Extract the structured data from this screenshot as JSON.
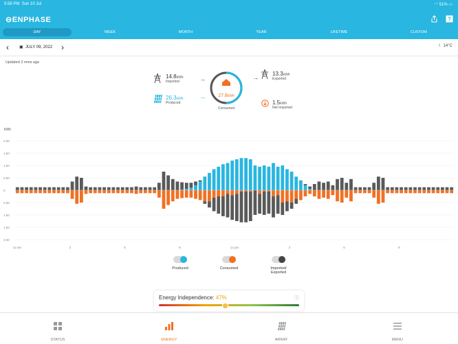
{
  "status_bar": {
    "time": "5:58 PM",
    "date": "Sun 10 Jul",
    "battery": "51%"
  },
  "app": {
    "name": "ENPHASE"
  },
  "tabs": [
    {
      "label": "DAY",
      "active": true
    },
    {
      "label": "WEEK",
      "active": false
    },
    {
      "label": "MONTH",
      "active": false
    },
    {
      "label": "YEAR",
      "active": false
    },
    {
      "label": "LIFETIME",
      "active": false
    },
    {
      "label": "CUSTOM",
      "active": false
    }
  ],
  "date_nav": {
    "date": "JULY 09, 2022",
    "temperature": "14°C"
  },
  "updated": "Updated 2 mins ago",
  "summary": {
    "imported": {
      "value": "14.8",
      "unit": "kWh",
      "label": "Imported"
    },
    "produced": {
      "value": "26.3",
      "unit": "kWh",
      "label": "Produced"
    },
    "consumed": {
      "value": "27.8",
      "unit": "kWh",
      "label": "Consumed"
    },
    "exported": {
      "value": "13.3",
      "unit": "kWh",
      "label": "Exported"
    },
    "net_imported": {
      "value": "1.5",
      "unit": "kWh",
      "label": "Net Imported"
    }
  },
  "colors": {
    "produced": "#29b6e0",
    "consumed": "#f27022",
    "imported": "#595959",
    "header": "#29b6e0"
  },
  "chart_data": {
    "type": "bar",
    "ylabel": "kWh",
    "ylim": [
      -2.0,
      2.0
    ],
    "y_ticks": [
      "2.00",
      "1.50",
      "1.00",
      "0.50",
      "0",
      "0.50",
      "1.00",
      "1.50",
      "2.00"
    ],
    "x_ticks": [
      "12 am",
      "3",
      "6",
      "9",
      "12 pm",
      "3",
      "6",
      "9"
    ],
    "intervals": 96,
    "series": [
      {
        "name": "Produced",
        "values": [
          0,
          0,
          0,
          0,
          0,
          0,
          0,
          0,
          0,
          0,
          0,
          0,
          0,
          0,
          0,
          0,
          0,
          0,
          0,
          0,
          0,
          0,
          0,
          0,
          0,
          0,
          0,
          0,
          0,
          0,
          0,
          0,
          0,
          0,
          0,
          0,
          0.02,
          0.05,
          0.1,
          0.2,
          0.35,
          0.55,
          0.7,
          0.85,
          0.95,
          1.05,
          1.1,
          1.2,
          1.25,
          1.3,
          1.3,
          1.25,
          1.0,
          0.95,
          1.0,
          0.95,
          1.1,
          0.95,
          1.0,
          0.85,
          0.75,
          0.55,
          0.4,
          0.2,
          0.05,
          0,
          0,
          0,
          0,
          0,
          0,
          0,
          0,
          0,
          0,
          0,
          0,
          0,
          0,
          0,
          0,
          0,
          0,
          0,
          0,
          0,
          0,
          0,
          0,
          0,
          0,
          0,
          0,
          0,
          0,
          0
        ]
      },
      {
        "name": "Imported/ Exported",
        "values": [
          0.12,
          0.12,
          0.12,
          0.12,
          0.12,
          0.12,
          0.12,
          0.12,
          0.12,
          0.12,
          0.12,
          0.12,
          0.35,
          0.55,
          0.5,
          0.15,
          0.12,
          0.12,
          0.12,
          0.12,
          0.12,
          0.12,
          0.12,
          0.12,
          0.12,
          0.12,
          0.15,
          0.12,
          0.12,
          0.12,
          0.12,
          0.3,
          0.75,
          0.6,
          0.45,
          0.35,
          0.3,
          0.25,
          0.2,
          0.15,
          0.05,
          -0.1,
          -0.25,
          -0.55,
          -0.7,
          -0.8,
          -0.95,
          -1.0,
          -1.1,
          -1.25,
          -1.25,
          -1.2,
          -1.0,
          -0.8,
          -0.95,
          -0.9,
          -0.85,
          -0.75,
          -0.5,
          -0.4,
          -0.25,
          -0.2,
          0.0,
          0.05,
          0.1,
          0.25,
          0.35,
          0.3,
          0.35,
          0.2,
          0.45,
          0.5,
          0.3,
          0.45,
          0.12,
          0.12,
          0.12,
          0.12,
          0.3,
          0.55,
          0.5,
          0.12,
          0.12,
          0.12,
          0.12,
          0.12,
          0.12,
          0.12,
          0.12,
          0.12,
          0.12,
          0.12,
          0.12,
          0.12,
          0.12,
          0.12
        ]
      },
      {
        "name": "Consumed",
        "values": [
          0.12,
          0.12,
          0.12,
          0.12,
          0.12,
          0.12,
          0.12,
          0.12,
          0.12,
          0.12,
          0.12,
          0.12,
          0.35,
          0.55,
          0.5,
          0.15,
          0.12,
          0.12,
          0.12,
          0.12,
          0.12,
          0.12,
          0.12,
          0.12,
          0.12,
          0.12,
          0.15,
          0.12,
          0.12,
          0.12,
          0.12,
          0.3,
          0.75,
          0.6,
          0.45,
          0.35,
          0.32,
          0.3,
          0.3,
          0.35,
          0.4,
          0.45,
          0.45,
          0.3,
          0.25,
          0.25,
          0.15,
          0.2,
          0.15,
          0.05,
          0.05,
          0.05,
          0.0,
          0.15,
          0.05,
          0.05,
          0.25,
          0.2,
          0.5,
          0.45,
          0.5,
          0.35,
          0.4,
          0.25,
          0.15,
          0.25,
          0.35,
          0.3,
          0.35,
          0.2,
          0.45,
          0.5,
          0.3,
          0.45,
          0.12,
          0.12,
          0.12,
          0.12,
          0.3,
          0.55,
          0.5,
          0.12,
          0.12,
          0.12,
          0.12,
          0.12,
          0.12,
          0.12,
          0.12,
          0.12,
          0.12,
          0.12,
          0.12,
          0.12,
          0.12,
          0.12
        ]
      }
    ]
  },
  "legend": [
    {
      "label": "Produced",
      "color": "#29b6e0"
    },
    {
      "label": "Consumed",
      "color": "#f27022"
    },
    {
      "label": "Imported/ Exported",
      "color": "#444444"
    }
  ],
  "energy_independence": {
    "label": "Energy Independence:",
    "value": "47%",
    "value_color": "#f0a500"
  },
  "nav": [
    {
      "label": "STATUS",
      "active": false
    },
    {
      "label": "ENERGY",
      "active": true
    },
    {
      "label": "ARRAY",
      "active": false
    },
    {
      "label": "MENU",
      "active": false
    }
  ]
}
